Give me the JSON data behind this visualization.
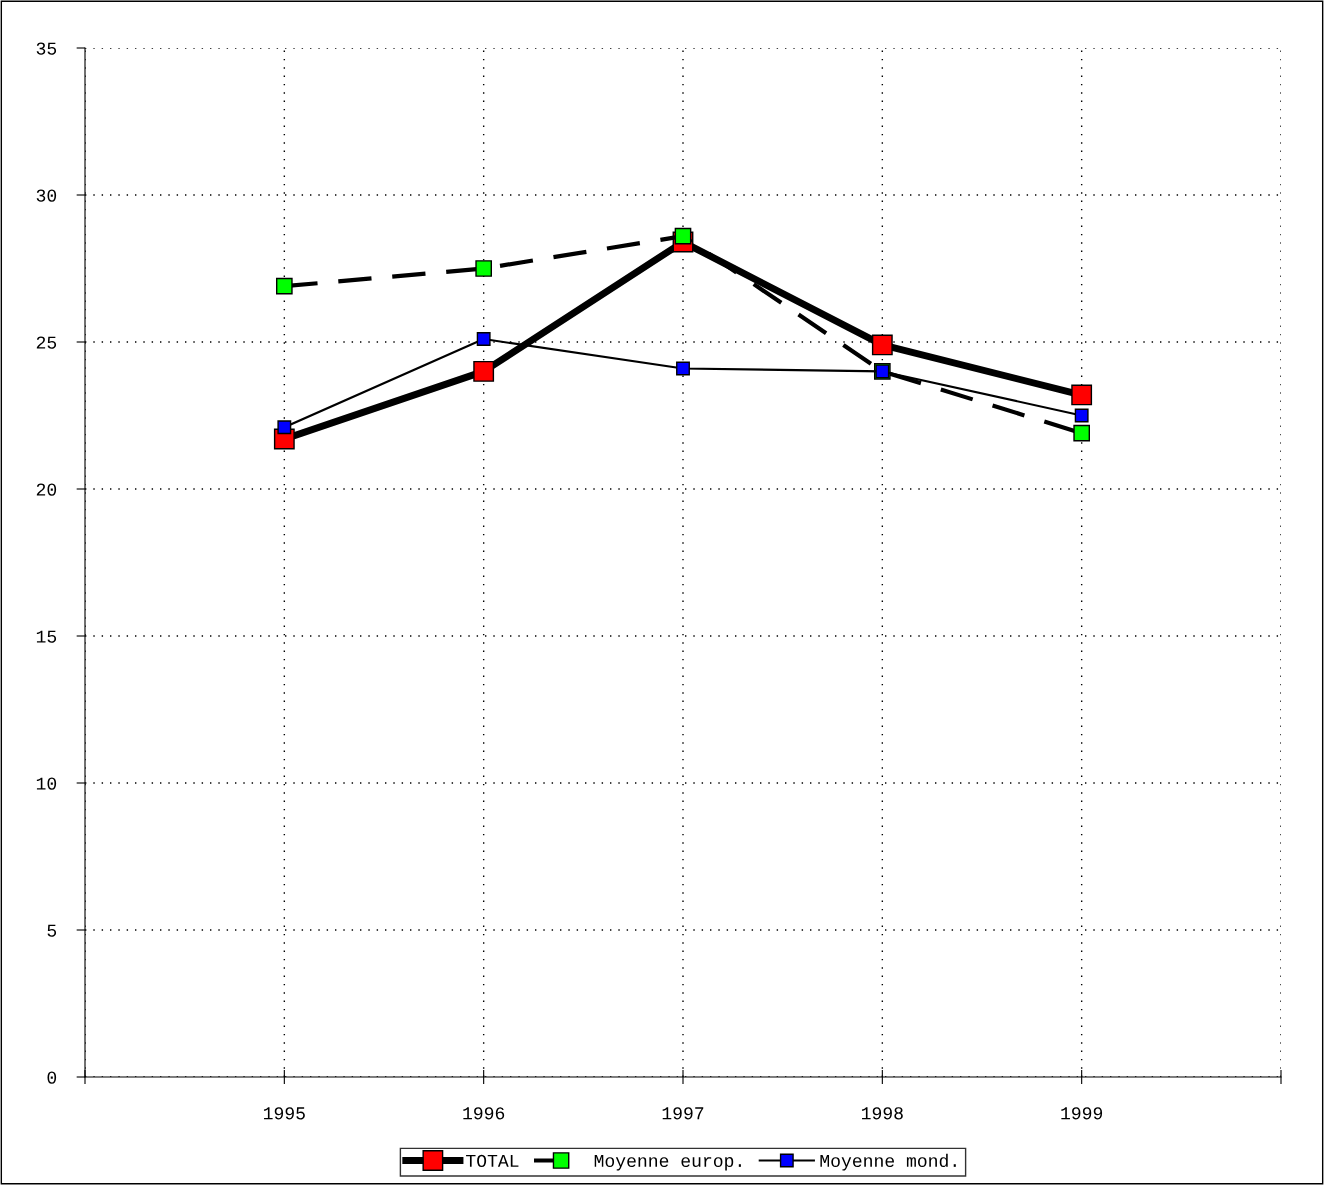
{
  "chart_data": {
    "type": "line",
    "x": [
      1995,
      1996,
      1997,
      1998,
      1999
    ],
    "xlim": [
      1994,
      2000
    ],
    "xticks": [
      {
        "value": 1994,
        "label": null
      },
      1995,
      1996,
      1997,
      1998,
      1999,
      {
        "value": 2000,
        "label": null
      }
    ],
    "ylim": [
      0,
      35
    ],
    "yticks": [
      0,
      5,
      10,
      15,
      20,
      25,
      30,
      35
    ],
    "grid": true,
    "legend": "bottom",
    "marker": "square",
    "series": [
      {
        "name": "TOTAL",
        "color": "#ff0000",
        "line_style": "solid",
        "values": [
          21.7,
          24.0,
          28.4,
          24.9,
          23.2
        ]
      },
      {
        "name": "Moyenne europ.",
        "color": "#00ff00",
        "line_style": "dashed",
        "values": [
          26.9,
          27.5,
          28.6,
          24.0,
          21.9
        ]
      },
      {
        "name": "Moyenne mond.",
        "color": "#0000ff",
        "line_style": "solid",
        "values": [
          22.1,
          25.1,
          24.1,
          24.0,
          22.5
        ]
      }
    ]
  }
}
